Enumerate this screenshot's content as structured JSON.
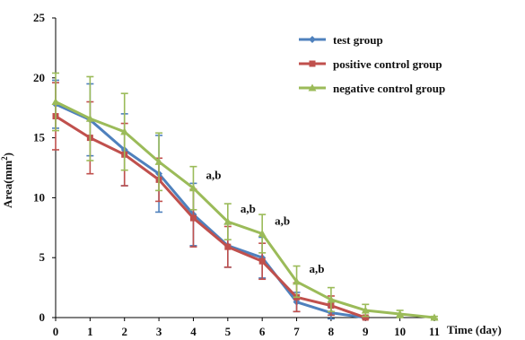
{
  "chart_data": {
    "type": "line",
    "xlabel": "Time (day)",
    "ylabel_text": "Area(mm",
    "ylabel_sup": "2",
    "ylabel_close": ")",
    "ylim": [
      0,
      25
    ],
    "xlim": [
      0,
      11
    ],
    "x_ticks": [
      "0",
      "1",
      "2",
      "3",
      "4",
      "5",
      "6",
      "7",
      "8",
      "9",
      "10",
      "11"
    ],
    "y_ticks": [
      "0",
      "5",
      "10",
      "15",
      "20",
      "25"
    ],
    "series": [
      {
        "name": "test group",
        "color": "#4f81bd",
        "x": [
          0,
          1,
          2,
          3,
          4,
          5,
          6,
          7,
          8,
          9
        ],
        "values": [
          17.8,
          16.5,
          14.0,
          12.0,
          8.6,
          6.0,
          5.0,
          1.3,
          0.4,
          0.0
        ],
        "errors": [
          2.0,
          3.0,
          3.0,
          3.2,
          2.6,
          1.8,
          1.7,
          0.8,
          0.5,
          0.1
        ]
      },
      {
        "name": "positive control group",
        "color": "#c0504d",
        "x": [
          0,
          1,
          2,
          3,
          4,
          5,
          6,
          7,
          8,
          9
        ],
        "values": [
          16.8,
          15.0,
          13.6,
          11.5,
          8.3,
          5.9,
          4.7,
          1.7,
          1.0,
          0.0
        ],
        "errors": [
          2.8,
          3.0,
          2.6,
          1.8,
          2.4,
          1.7,
          1.5,
          1.2,
          0.8,
          0.1
        ]
      },
      {
        "name": "negative control group",
        "color": "#9bbb59",
        "x": [
          0,
          1,
          2,
          3,
          4,
          5,
          6,
          7,
          8,
          9,
          10,
          11
        ],
        "values": [
          18.0,
          16.6,
          15.5,
          13.0,
          10.8,
          8.0,
          7.0,
          3.0,
          1.5,
          0.6,
          0.3,
          0.0
        ],
        "errors": [
          2.4,
          3.5,
          3.2,
          2.4,
          1.8,
          1.5,
          1.6,
          1.3,
          1.0,
          0.5,
          0.3,
          0.1
        ]
      }
    ],
    "annotations": [
      {
        "text": "a,b",
        "x": 4,
        "y": 10.8
      },
      {
        "text": "a,b",
        "x": 5,
        "y": 8.0
      },
      {
        "text": "a,b",
        "x": 6,
        "y": 7.0
      },
      {
        "text": "a,b",
        "x": 7,
        "y": 3.0
      }
    ],
    "legend_position": "top-right",
    "grid": false
  }
}
